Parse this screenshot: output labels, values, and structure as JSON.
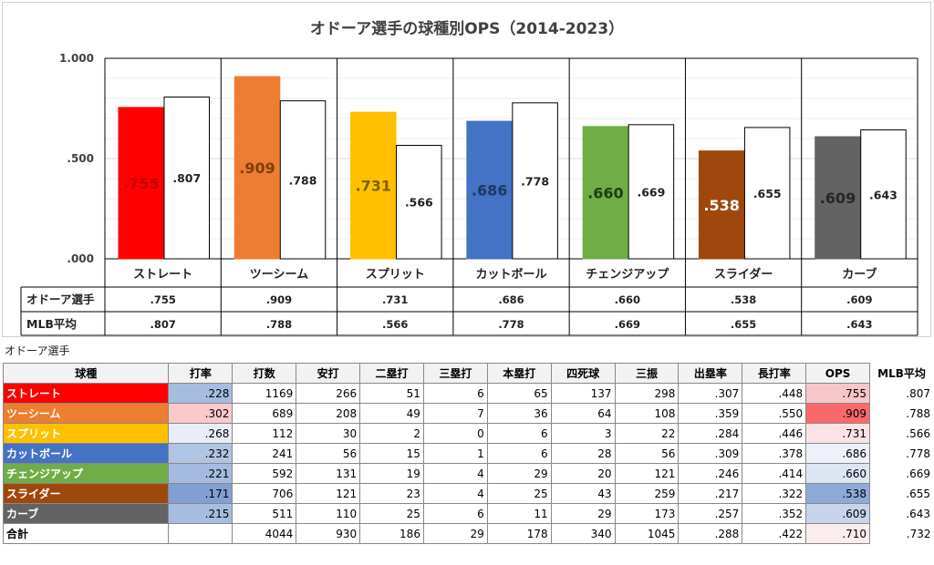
{
  "chart_data": {
    "type": "bar",
    "title": "オドーア選手の球種別OPS（2014-2023）",
    "categories": [
      "ストレート",
      "ツーシーム",
      "スプリット",
      "カットボール",
      "チェンジアップ",
      "スライダー",
      "カーブ"
    ],
    "colors": [
      "#ff0000",
      "#ed7d31",
      "#ffc000",
      "#4472c4",
      "#70ad47",
      "#9e480e",
      "#636363"
    ],
    "label_colors": [
      "#c00000",
      "#7f3f00",
      "#7f6000",
      "#1f3864",
      "#1e3d12",
      "#ffffff",
      "#262626"
    ],
    "series": [
      {
        "name": "オドーア選手",
        "values": [
          0.755,
          0.909,
          0.731,
          0.686,
          0.66,
          0.538,
          0.609
        ],
        "labels": [
          ".755",
          ".909",
          ".731",
          ".686",
          ".660",
          ".538",
          ".609"
        ]
      },
      {
        "name": "MLB平均",
        "values": [
          0.807,
          0.788,
          0.566,
          0.778,
          0.669,
          0.655,
          0.643
        ],
        "labels": [
          ".807",
          ".788",
          ".566",
          ".778",
          ".669",
          ".655",
          ".643"
        ]
      }
    ],
    "ylim": [
      0,
      1.0
    ],
    "yticks": [
      0,
      0.5,
      1.0
    ],
    "ytick_labels": [
      ".000",
      ".500",
      "1.000"
    ]
  },
  "section_label": "オドーア選手",
  "table": {
    "headers": [
      "球種",
      "打率",
      "打数",
      "安打",
      "二塁打",
      "三塁打",
      "本塁打",
      "四死球",
      "三振",
      "出塁率",
      "長打率",
      "OPS",
      "MLB平均"
    ],
    "rows": [
      {
        "name": "ストレート",
        "cells": [
          ".228",
          "1169",
          "266",
          "51",
          "6",
          "65",
          "137",
          "298",
          ".307",
          ".448",
          ".755",
          ".807"
        ],
        "avg_bg": "#a6bde0",
        "ops_bg": "#f8c6c8"
      },
      {
        "name": "ツーシーム",
        "cells": [
          ".302",
          "689",
          "208",
          "49",
          "7",
          "36",
          "64",
          "108",
          ".359",
          ".550",
          ".909",
          ".788"
        ],
        "avg_bg": "#f9c9cb",
        "ops_bg": "#f8696b"
      },
      {
        "name": "スプリット",
        "cells": [
          ".268",
          "112",
          "30",
          "2",
          "0",
          "6",
          "3",
          "22",
          ".284",
          ".446",
          ".731",
          ".566"
        ],
        "avg_bg": "#e8edf7",
        "ops_bg": "#fbe3e5"
      },
      {
        "name": "カットボール",
        "cells": [
          ".232",
          "241",
          "56",
          "15",
          "1",
          "6",
          "28",
          "56",
          ".309",
          ".378",
          ".686",
          ".778"
        ],
        "avg_bg": "#b0c4e3",
        "ops_bg": "#eef1f9"
      },
      {
        "name": "チェンジアップ",
        "cells": [
          ".221",
          "592",
          "131",
          "19",
          "4",
          "29",
          "20",
          "121",
          ".246",
          ".414",
          ".660",
          ".669"
        ],
        "avg_bg": "#a4bbdf",
        "ops_bg": "#dde5f3"
      },
      {
        "name": "スライダー",
        "cells": [
          ".171",
          "706",
          "121",
          "23",
          "4",
          "25",
          "43",
          "259",
          ".217",
          ".322",
          ".538",
          ".655"
        ],
        "avg_bg": "#819fd2",
        "ops_bg": "#8eaad8"
      },
      {
        "name": "カーブ",
        "cells": [
          ".215",
          "511",
          "110",
          "25",
          "6",
          "11",
          "29",
          "173",
          ".257",
          ".352",
          ".609",
          ".643"
        ],
        "avg_bg": "#a7bde0",
        "ops_bg": "#c7d4ec"
      }
    ],
    "total": {
      "name": "合計",
      "cells": [
        "",
        "4044",
        "930",
        "186",
        "29",
        "178",
        "340",
        "1045",
        ".288",
        ".422",
        ".710",
        ".732"
      ],
      "ops_bg": "#fbeced"
    }
  }
}
